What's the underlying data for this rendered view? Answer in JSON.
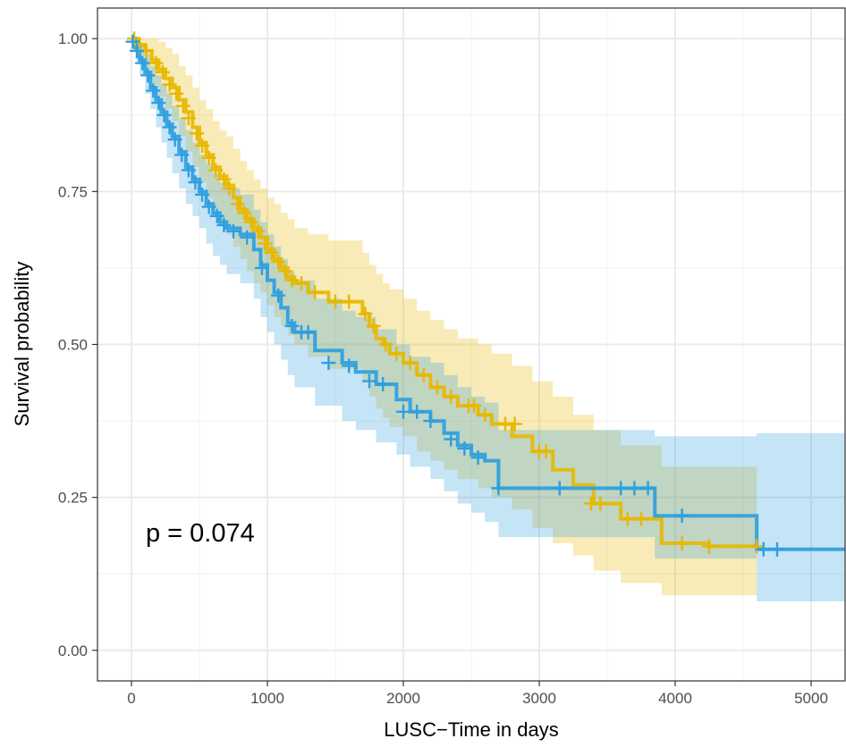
{
  "chart_data": {
    "type": "line",
    "subtype": "kaplan-meier step",
    "title": "",
    "xlabel": "LUSC−Time in days",
    "ylabel": "Survival probability",
    "xlim": [
      -250,
      5250
    ],
    "ylim": [
      -0.05,
      1.05
    ],
    "x_ticks": [
      0,
      1000,
      2000,
      3000,
      4000,
      5000
    ],
    "x_tick_labels": [
      "0",
      "1000",
      "2000",
      "3000",
      "4000",
      "5000"
    ],
    "y_ticks": [
      0,
      0.25,
      0.5,
      0.75,
      1.0
    ],
    "y_tick_labels": [
      "0.00",
      "0.25",
      "0.50",
      "0.75",
      "1.00"
    ],
    "grid": true,
    "legend": "none",
    "annotation": "p = 0.074",
    "series": [
      {
        "color": "#E7B800",
        "x": [
          0,
          50,
          100,
          150,
          200,
          250,
          300,
          350,
          400,
          450,
          500,
          550,
          600,
          650,
          700,
          750,
          800,
          850,
          900,
          950,
          1000,
          1050,
          1100,
          1150,
          1200,
          1300,
          1450,
          1700,
          1750,
          1800,
          1850,
          1900,
          2000,
          2100,
          2200,
          2300,
          2400,
          2550,
          2650,
          2800,
          2950,
          3100,
          3250,
          3400,
          3600,
          3900,
          4250,
          4600
        ],
        "y": [
          1.0,
          0.99,
          0.98,
          0.965,
          0.95,
          0.935,
          0.92,
          0.9,
          0.88,
          0.855,
          0.83,
          0.81,
          0.79,
          0.775,
          0.76,
          0.74,
          0.72,
          0.705,
          0.69,
          0.675,
          0.655,
          0.64,
          0.625,
          0.61,
          0.6,
          0.585,
          0.57,
          0.55,
          0.53,
          0.51,
          0.5,
          0.485,
          0.47,
          0.45,
          0.43,
          0.415,
          0.4,
          0.385,
          0.37,
          0.35,
          0.325,
          0.295,
          0.27,
          0.24,
          0.215,
          0.175,
          0.17,
          0.17
        ],
        "ci_lower": [
          0.99,
          0.97,
          0.95,
          0.925,
          0.905,
          0.885,
          0.865,
          0.84,
          0.815,
          0.79,
          0.765,
          0.74,
          0.72,
          0.7,
          0.68,
          0.66,
          0.64,
          0.62,
          0.6,
          0.585,
          0.565,
          0.545,
          0.53,
          0.515,
          0.5,
          0.48,
          0.46,
          0.44,
          0.415,
          0.395,
          0.38,
          0.365,
          0.35,
          0.325,
          0.31,
          0.295,
          0.28,
          0.265,
          0.25,
          0.23,
          0.2,
          0.175,
          0.155,
          0.13,
          0.11,
          0.09,
          0.09,
          0.09
        ],
        "ci_upper": [
          1.0,
          1.0,
          1.0,
          1.0,
          0.995,
          0.985,
          0.975,
          0.955,
          0.94,
          0.92,
          0.9,
          0.885,
          0.865,
          0.85,
          0.84,
          0.82,
          0.8,
          0.785,
          0.77,
          0.755,
          0.74,
          0.73,
          0.715,
          0.705,
          0.69,
          0.68,
          0.67,
          0.65,
          0.63,
          0.615,
          0.6,
          0.59,
          0.575,
          0.555,
          0.54,
          0.525,
          0.51,
          0.5,
          0.485,
          0.465,
          0.44,
          0.415,
          0.385,
          0.36,
          0.335,
          0.3,
          0.3,
          0.3
        ],
        "censored": [
          [
            20,
            1.0
          ],
          [
            60,
            0.99
          ],
          [
            110,
            0.98
          ],
          [
            180,
            0.96
          ],
          [
            230,
            0.945
          ],
          [
            280,
            0.925
          ],
          [
            330,
            0.91
          ],
          [
            380,
            0.89
          ],
          [
            420,
            0.87
          ],
          [
            480,
            0.845
          ],
          [
            520,
            0.825
          ],
          [
            570,
            0.805
          ],
          [
            620,
            0.785
          ],
          [
            680,
            0.77
          ],
          [
            720,
            0.755
          ],
          [
            780,
            0.73
          ],
          [
            830,
            0.715
          ],
          [
            880,
            0.7
          ],
          [
            930,
            0.685
          ],
          [
            980,
            0.665
          ],
          [
            1030,
            0.65
          ],
          [
            1080,
            0.635
          ],
          [
            1130,
            0.62
          ],
          [
            1180,
            0.605
          ],
          [
            1250,
            0.6
          ],
          [
            1350,
            0.585
          ],
          [
            1500,
            0.57
          ],
          [
            1600,
            0.57
          ],
          [
            1720,
            0.55
          ],
          [
            1780,
            0.53
          ],
          [
            1870,
            0.5
          ],
          [
            1950,
            0.485
          ],
          [
            2050,
            0.47
          ],
          [
            2150,
            0.45
          ],
          [
            2250,
            0.43
          ],
          [
            2350,
            0.415
          ],
          [
            2480,
            0.4
          ],
          [
            2520,
            0.4
          ],
          [
            2600,
            0.385
          ],
          [
            2750,
            0.37
          ],
          [
            2820,
            0.37
          ],
          [
            3000,
            0.325
          ],
          [
            3050,
            0.325
          ],
          [
            3380,
            0.24
          ],
          [
            3450,
            0.24
          ],
          [
            3650,
            0.215
          ],
          [
            3750,
            0.215
          ],
          [
            4050,
            0.175
          ],
          [
            4250,
            0.17
          ],
          [
            4600,
            0.17
          ]
        ]
      },
      {
        "color": "#2E9FDF",
        "x": [
          0,
          30,
          60,
          100,
          140,
          180,
          220,
          260,
          300,
          350,
          400,
          450,
          500,
          550,
          600,
          650,
          700,
          800,
          900,
          950,
          1000,
          1050,
          1100,
          1150,
          1200,
          1350,
          1550,
          1650,
          1800,
          1950,
          2050,
          2200,
          2300,
          2400,
          2500,
          2600,
          2700,
          3000,
          3850,
          4600
        ],
        "y": [
          1.0,
          0.985,
          0.965,
          0.945,
          0.92,
          0.9,
          0.88,
          0.86,
          0.84,
          0.815,
          0.79,
          0.77,
          0.75,
          0.73,
          0.715,
          0.7,
          0.69,
          0.68,
          0.655,
          0.63,
          0.605,
          0.585,
          0.56,
          0.535,
          0.52,
          0.49,
          0.47,
          0.455,
          0.435,
          0.41,
          0.39,
          0.375,
          0.355,
          0.335,
          0.32,
          0.31,
          0.265,
          0.265,
          0.22,
          0.165
        ],
        "ci_lower": [
          0.99,
          0.965,
          0.94,
          0.91,
          0.885,
          0.855,
          0.83,
          0.805,
          0.78,
          0.755,
          0.73,
          0.71,
          0.69,
          0.665,
          0.645,
          0.63,
          0.615,
          0.6,
          0.575,
          0.545,
          0.52,
          0.5,
          0.475,
          0.45,
          0.43,
          0.4,
          0.375,
          0.36,
          0.34,
          0.32,
          0.3,
          0.28,
          0.26,
          0.24,
          0.225,
          0.21,
          0.185,
          0.185,
          0.15,
          0.08
        ],
        "ci_upper": [
          1.0,
          1.0,
          0.99,
          0.975,
          0.955,
          0.94,
          0.925,
          0.91,
          0.89,
          0.87,
          0.85,
          0.83,
          0.81,
          0.795,
          0.78,
          0.765,
          0.755,
          0.745,
          0.72,
          0.7,
          0.68,
          0.66,
          0.64,
          0.62,
          0.605,
          0.575,
          0.555,
          0.545,
          0.525,
          0.5,
          0.48,
          0.47,
          0.45,
          0.43,
          0.415,
          0.405,
          0.36,
          0.36,
          0.35,
          0.355
        ],
        "censored": [
          [
            10,
            0.995
          ],
          [
            40,
            0.98
          ],
          [
            80,
            0.96
          ],
          [
            120,
            0.94
          ],
          [
            160,
            0.915
          ],
          [
            200,
            0.895
          ],
          [
            240,
            0.875
          ],
          [
            280,
            0.855
          ],
          [
            320,
            0.835
          ],
          [
            370,
            0.81
          ],
          [
            420,
            0.785
          ],
          [
            470,
            0.765
          ],
          [
            520,
            0.745
          ],
          [
            570,
            0.725
          ],
          [
            630,
            0.71
          ],
          [
            680,
            0.695
          ],
          [
            750,
            0.685
          ],
          [
            850,
            0.675
          ],
          [
            960,
            0.625
          ],
          [
            1080,
            0.58
          ],
          [
            1180,
            0.53
          ],
          [
            1250,
            0.52
          ],
          [
            1300,
            0.52
          ],
          [
            1450,
            0.47
          ],
          [
            1600,
            0.465
          ],
          [
            1750,
            0.44
          ],
          [
            1850,
            0.435
          ],
          [
            2000,
            0.39
          ],
          [
            2100,
            0.39
          ],
          [
            2200,
            0.375
          ],
          [
            2350,
            0.345
          ],
          [
            2450,
            0.33
          ],
          [
            2550,
            0.315
          ],
          [
            2700,
            0.265
          ],
          [
            3150,
            0.265
          ],
          [
            3600,
            0.265
          ],
          [
            3700,
            0.265
          ],
          [
            3800,
            0.265
          ],
          [
            4050,
            0.22
          ],
          [
            4650,
            0.165
          ],
          [
            4750,
            0.165
          ]
        ]
      }
    ]
  }
}
